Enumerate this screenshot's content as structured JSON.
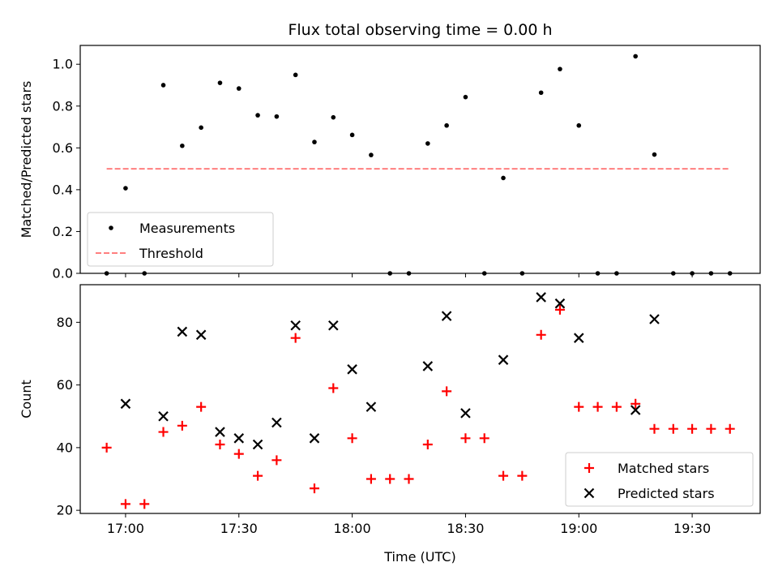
{
  "chart_data": [
    {
      "type": "scatter",
      "title": "Flux total observing time = 0.00 h",
      "xlabel": "",
      "ylabel": "Matched/Predicted stars",
      "ylim": [
        0,
        1.09
      ],
      "yticks": [
        0.0,
        0.2,
        0.4,
        0.6,
        0.8,
        1.0
      ],
      "ytick_labels": [
        "0.0",
        "0.2",
        "0.4",
        "0.6",
        "0.8",
        "1.0"
      ],
      "xlim": [
        "16:48",
        "19:48"
      ],
      "legend": {
        "placement": "lower-left",
        "entries": [
          "Measurements",
          "Threshold"
        ]
      },
      "series": [
        {
          "name": "Measurements",
          "marker": "dot",
          "color": "#000000",
          "x": [
            "16:55",
            "17:00",
            "17:05",
            "17:10",
            "17:15",
            "17:20",
            "17:25",
            "17:30",
            "17:35",
            "17:40",
            "17:45",
            "17:50",
            "17:55",
            "18:00",
            "18:05",
            "18:10",
            "18:15",
            "18:20",
            "18:25",
            "18:30",
            "18:35",
            "18:40",
            "18:45",
            "18:50",
            "18:55",
            "19:00",
            "19:05",
            "19:10",
            "19:15",
            "19:20",
            "19:25",
            "19:30",
            "19:35",
            "19:40"
          ],
          "y": [
            0.0,
            0.407,
            0.0,
            0.9,
            0.61,
            0.697,
            0.911,
            0.884,
            0.756,
            0.75,
            0.949,
            0.628,
            0.746,
            0.662,
            0.566,
            0.0,
            0.0,
            0.621,
            0.707,
            0.843,
            0.0,
            0.456,
            0.0,
            0.864,
            0.977,
            0.707,
            0.0,
            0.0,
            1.038,
            0.568,
            0.0,
            0.0,
            0.0,
            0.0
          ]
        },
        {
          "name": "Threshold",
          "style": "dashed",
          "color": "#ff7f7f",
          "x": [
            "16:55",
            "19:40"
          ],
          "y": [
            0.5,
            0.5
          ]
        }
      ]
    },
    {
      "type": "scatter",
      "title": "",
      "xlabel": "Time (UTC)",
      "ylabel": "Count",
      "ylim": [
        19,
        92
      ],
      "yticks": [
        20,
        40,
        60,
        80
      ],
      "ytick_labels": [
        "20",
        "40",
        "60",
        "80"
      ],
      "xlim": [
        "16:48",
        "19:48"
      ],
      "xticks": [
        "17:00",
        "17:30",
        "18:00",
        "18:30",
        "19:00",
        "19:30"
      ],
      "xtick_labels": [
        "17:00",
        "17:30",
        "18:00",
        "18:30",
        "19:00",
        "19:30"
      ],
      "legend": {
        "placement": "lower-right",
        "entries": [
          "Matched stars",
          "Predicted stars"
        ]
      },
      "series": [
        {
          "name": "Matched stars",
          "marker": "plus",
          "color": "#ff0000",
          "x": [
            "16:55",
            "17:00",
            "17:05",
            "17:10",
            "17:15",
            "17:20",
            "17:25",
            "17:30",
            "17:35",
            "17:40",
            "17:45",
            "17:50",
            "17:55",
            "18:00",
            "18:05",
            "18:10",
            "18:15",
            "18:20",
            "18:25",
            "18:30",
            "18:35",
            "18:40",
            "18:45",
            "18:50",
            "18:55",
            "19:00",
            "19:05",
            "19:10",
            "19:15",
            "19:20",
            "19:25",
            "19:30",
            "19:35",
            "19:40"
          ],
          "y": [
            40,
            22,
            22,
            45,
            47,
            53,
            41,
            38,
            31,
            36,
            75,
            27,
            59,
            43,
            30,
            30,
            30,
            41,
            58,
            43,
            43,
            31,
            31,
            76,
            84,
            53,
            53,
            53,
            54,
            46,
            46,
            46,
            46,
            46
          ]
        },
        {
          "name": "Predicted stars",
          "marker": "x",
          "color": "#000000",
          "x": [
            "17:00",
            "17:10",
            "17:15",
            "17:20",
            "17:25",
            "17:30",
            "17:35",
            "17:40",
            "17:45",
            "17:50",
            "17:55",
            "18:00",
            "18:05",
            "18:20",
            "18:25",
            "18:30",
            "18:40",
            "18:50",
            "18:55",
            "19:00",
            "19:15",
            "19:20"
          ],
          "y": [
            54,
            50,
            77,
            76,
            45,
            43,
            41,
            48,
            79,
            43,
            79,
            65,
            53,
            66,
            82,
            51,
            68,
            88,
            86,
            75,
            52,
            81
          ]
        }
      ]
    }
  ]
}
